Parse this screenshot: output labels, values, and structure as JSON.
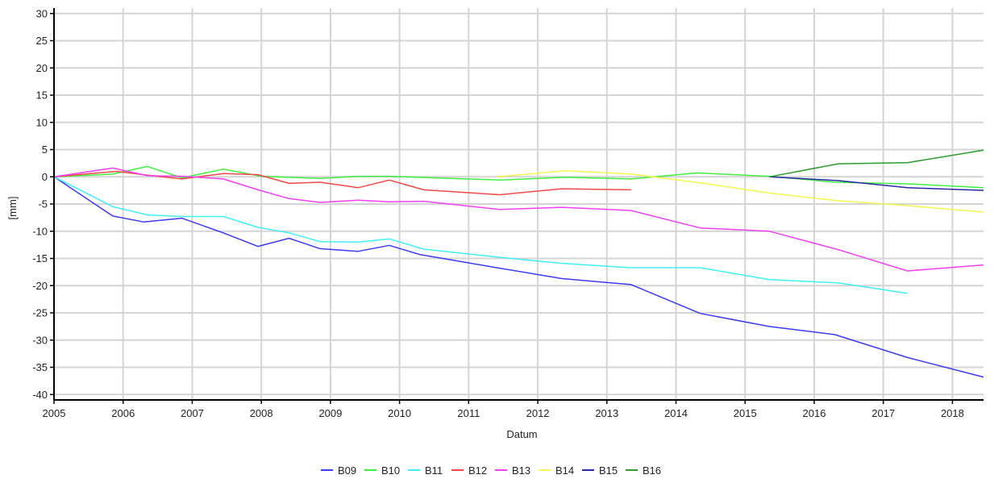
{
  "chart_data": {
    "type": "line",
    "xlabel": "Datum",
    "ylabel": "[mm]",
    "xlim": [
      2005,
      2018.45
    ],
    "ylim": [
      -41,
      31
    ],
    "x_ticks": [
      "2005",
      "2006",
      "2007",
      "2008",
      "2009",
      "2010",
      "2011",
      "2012",
      "2013",
      "2014",
      "2015",
      "2016",
      "2017",
      "2018"
    ],
    "y_ticks": [
      "30",
      "25",
      "20",
      "15",
      "10",
      "5",
      "0",
      "-5",
      "-10",
      "-15",
      "-20",
      "-25",
      "-30",
      "-35",
      "-40"
    ],
    "grid": true,
    "legend_position": "bottom",
    "series": [
      {
        "name": "B09",
        "color": "#3b3bf0",
        "x": [
          2005.0,
          2005.85,
          2006.3,
          2006.85,
          2007.45,
          2007.95,
          2008.4,
          2008.85,
          2009.4,
          2009.85,
          2010.3,
          2011.45,
          2012.35,
          2013.35,
          2014.35,
          2015.35,
          2016.3,
          2017.35,
          2018.45
        ],
        "y": [
          0,
          -7.2,
          -8.3,
          -7.6,
          -10.3,
          -12.8,
          -11.3,
          -13.2,
          -13.7,
          -12.6,
          -14.3,
          -16.8,
          -18.7,
          -19.8,
          -25.1,
          -27.5,
          -29.0,
          -33.2,
          -36.8
        ]
      },
      {
        "name": "B10",
        "color": "#40ee40",
        "x": [
          2005.0,
          2005.85,
          2006.35,
          2006.85,
          2007.45,
          2008.0,
          2008.85,
          2009.4,
          2009.85,
          2011.45,
          2012.4,
          2013.35,
          2014.3,
          2015.35,
          2016.3,
          2017.35,
          2018.45
        ],
        "y": [
          0,
          0.5,
          1.9,
          -0.2,
          1.4,
          0.1,
          -0.3,
          0.1,
          0.1,
          -0.6,
          -0.1,
          -0.4,
          0.7,
          0.1,
          -1.0,
          -1.3,
          -2.0
        ]
      },
      {
        "name": "B11",
        "color": "#40f0f0",
        "x": [
          2005.0,
          2005.85,
          2006.35,
          2006.85,
          2007.45,
          2007.95,
          2008.4,
          2008.85,
          2009.4,
          2009.85,
          2010.35,
          2011.45,
          2012.35,
          2013.35,
          2014.35,
          2015.35,
          2016.35,
          2017.35
        ],
        "y": [
          0,
          -5.5,
          -7.0,
          -7.3,
          -7.3,
          -9.3,
          -10.3,
          -11.9,
          -12.0,
          -11.4,
          -13.3,
          -14.8,
          -15.9,
          -16.7,
          -16.7,
          -18.9,
          -19.5,
          -21.4
        ]
      },
      {
        "name": "B12",
        "color": "#f04848",
        "x": [
          2005.0,
          2005.9,
          2006.35,
          2006.85,
          2007.45,
          2007.95,
          2008.4,
          2008.85,
          2009.4,
          2009.85,
          2010.35,
          2011.45,
          2012.35,
          2013.35
        ],
        "y": [
          0,
          1.0,
          0.3,
          -0.4,
          0.6,
          0.4,
          -1.2,
          -1.0,
          -2.0,
          -0.6,
          -2.4,
          -3.3,
          -2.2,
          -2.4
        ]
      },
      {
        "name": "B13",
        "color": "#f040f0",
        "x": [
          2005.0,
          2005.85,
          2006.35,
          2006.85,
          2007.45,
          2007.95,
          2008.4,
          2008.85,
          2009.4,
          2009.85,
          2010.35,
          2011.45,
          2012.35,
          2013.35,
          2014.35,
          2015.35,
          2016.35,
          2017.35,
          2018.45
        ],
        "y": [
          0,
          1.6,
          0.2,
          0.1,
          -0.4,
          -2.4,
          -4.0,
          -4.7,
          -4.3,
          -4.6,
          -4.5,
          -6.0,
          -5.6,
          -6.2,
          -9.4,
          -10.0,
          -13.4,
          -17.3,
          -16.2
        ]
      },
      {
        "name": "B14",
        "color": "#f5f550",
        "x": [
          2011.4,
          2012.4,
          2013.35,
          2014.35,
          2015.35,
          2016.35,
          2017.35,
          2018.45
        ],
        "y": [
          0,
          1.1,
          0.5,
          -1.1,
          -3.0,
          -4.4,
          -5.3,
          -6.5
        ]
      },
      {
        "name": "B15",
        "color": "#2828a8",
        "x": [
          2015.35,
          2016.35,
          2017.35,
          2018.45
        ],
        "y": [
          0,
          -0.7,
          -2.0,
          -2.5
        ]
      },
      {
        "name": "B16",
        "color": "#2f9a2f",
        "x": [
          2015.35,
          2016.35,
          2017.35,
          2018.45
        ],
        "y": [
          0,
          2.4,
          2.6,
          4.9
        ]
      }
    ]
  }
}
